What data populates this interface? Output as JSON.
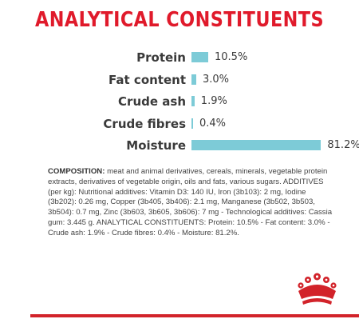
{
  "title": "ANALYTICAL CONSTITUENTS",
  "colors": {
    "title": "#e01a2b",
    "bar": "#7dcbd7",
    "text": "#3a3a3a",
    "brand_red": "#d2232a"
  },
  "chart_data": {
    "type": "bar",
    "orientation": "horizontal",
    "categories": [
      "Protein",
      "Fat content",
      "Crude ash",
      "Crude fibres",
      "Moisture"
    ],
    "values": [
      10.5,
      3.0,
      1.9,
      0.4,
      81.2
    ],
    "value_labels": [
      "10.5%",
      "3.0%",
      "1.9%",
      "0.4%",
      "81.2%"
    ],
    "unit": "%",
    "title": "ANALYTICAL CONSTITUENTS",
    "xlabel": "",
    "ylabel": "",
    "xlim": [
      0,
      100
    ],
    "grid": false,
    "legend": "none"
  },
  "composition": {
    "heading": "COMPOSITION:",
    "text": " meat and animal derivatives, cereals, minerals, vegetable protein extracts, derivatives of vegetable origin, oils and fats, various sugars. ADDITIVES (per kg): Nutritional additives: Vitamin D3: 140 IU, Iron (3b103): 2 mg, Iodine (3b202): 0.26 mg, Copper (3b405, 3b406): 2.1 mg, Manganese (3b502, 3b503, 3b504): 0.7 mg, Zinc (3b603, 3b605, 3b606): 7 mg - Technological additives: Cassia gum: 3.445 g. ANALYTICAL CONSTITUENTS: Protein: 10.5% - Fat content: 3.0% - Crude ash: 1.9% - Crude fibres: 0.4% - Moisture: 81.2%."
  },
  "logo": {
    "name": "crown-logo-icon"
  }
}
